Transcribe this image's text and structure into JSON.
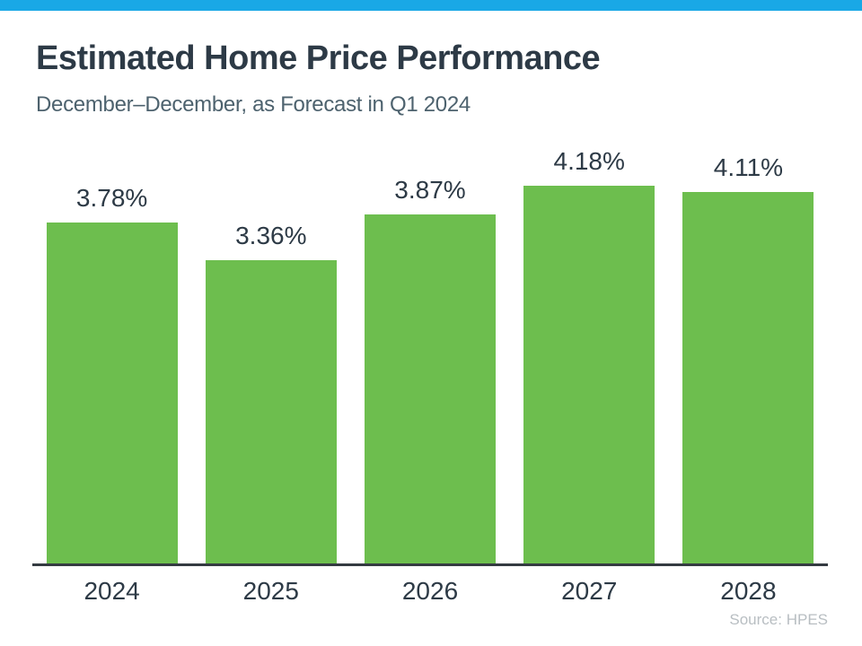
{
  "page": {
    "background": "#ffffff",
    "accent_bar_color": "#19a8e6"
  },
  "header": {
    "title": "Estimated Home Price Performance",
    "title_color": "#2d3a46",
    "subtitle": "December–December, as Forecast in Q1 2024",
    "subtitle_color": "#4d626e"
  },
  "chart_data": {
    "type": "bar",
    "title": "Estimated Home Price Performance",
    "subtitle": "December–December, as Forecast in Q1 2024",
    "categories": [
      "2024",
      "2025",
      "2026",
      "2027",
      "2028"
    ],
    "values": [
      3.78,
      3.36,
      3.87,
      4.18,
      4.11
    ],
    "value_labels": [
      "3.78%",
      "3.36%",
      "3.87%",
      "4.18%",
      "4.11%"
    ],
    "xlabel": "",
    "ylabel": "",
    "ylim": [
      0,
      4.65
    ],
    "grid": false,
    "legend": "none",
    "bar_color": "#6dbe4e",
    "label_color": "#2d3a46",
    "axis_line_color": "#343b41"
  },
  "footer": {
    "source": "Source: HPES",
    "source_color": "#b8bec2"
  }
}
